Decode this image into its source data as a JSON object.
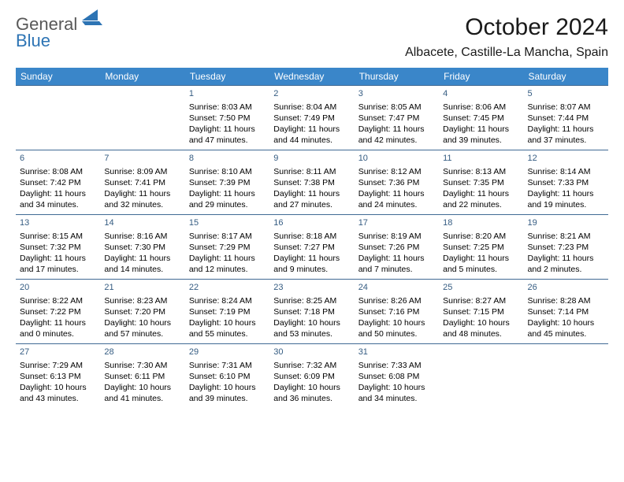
{
  "logo": {
    "part1": "General",
    "part2": "Blue"
  },
  "title": "October 2024",
  "location": "Albacete, Castille-La Mancha, Spain",
  "colors": {
    "header_bg": "#3a86c9",
    "header_text": "#ffffff",
    "row_border": "#406a94",
    "daynum_color": "#355c82",
    "logo_gray": "#585858",
    "logo_blue": "#2d74b4"
  },
  "typography": {
    "title_fontsize": 30,
    "location_fontsize": 16,
    "header_fontsize": 12,
    "cell_fontsize": 10.5
  },
  "weekdays": [
    "Sunday",
    "Monday",
    "Tuesday",
    "Wednesday",
    "Thursday",
    "Friday",
    "Saturday"
  ],
  "weeks": [
    [
      null,
      null,
      {
        "n": "1",
        "sunrise": "Sunrise: 8:03 AM",
        "sunset": "Sunset: 7:50 PM",
        "daylight": "Daylight: 11 hours and 47 minutes."
      },
      {
        "n": "2",
        "sunrise": "Sunrise: 8:04 AM",
        "sunset": "Sunset: 7:49 PM",
        "daylight": "Daylight: 11 hours and 44 minutes."
      },
      {
        "n": "3",
        "sunrise": "Sunrise: 8:05 AM",
        "sunset": "Sunset: 7:47 PM",
        "daylight": "Daylight: 11 hours and 42 minutes."
      },
      {
        "n": "4",
        "sunrise": "Sunrise: 8:06 AM",
        "sunset": "Sunset: 7:45 PM",
        "daylight": "Daylight: 11 hours and 39 minutes."
      },
      {
        "n": "5",
        "sunrise": "Sunrise: 8:07 AM",
        "sunset": "Sunset: 7:44 PM",
        "daylight": "Daylight: 11 hours and 37 minutes."
      }
    ],
    [
      {
        "n": "6",
        "sunrise": "Sunrise: 8:08 AM",
        "sunset": "Sunset: 7:42 PM",
        "daylight": "Daylight: 11 hours and 34 minutes."
      },
      {
        "n": "7",
        "sunrise": "Sunrise: 8:09 AM",
        "sunset": "Sunset: 7:41 PM",
        "daylight": "Daylight: 11 hours and 32 minutes."
      },
      {
        "n": "8",
        "sunrise": "Sunrise: 8:10 AM",
        "sunset": "Sunset: 7:39 PM",
        "daylight": "Daylight: 11 hours and 29 minutes."
      },
      {
        "n": "9",
        "sunrise": "Sunrise: 8:11 AM",
        "sunset": "Sunset: 7:38 PM",
        "daylight": "Daylight: 11 hours and 27 minutes."
      },
      {
        "n": "10",
        "sunrise": "Sunrise: 8:12 AM",
        "sunset": "Sunset: 7:36 PM",
        "daylight": "Daylight: 11 hours and 24 minutes."
      },
      {
        "n": "11",
        "sunrise": "Sunrise: 8:13 AM",
        "sunset": "Sunset: 7:35 PM",
        "daylight": "Daylight: 11 hours and 22 minutes."
      },
      {
        "n": "12",
        "sunrise": "Sunrise: 8:14 AM",
        "sunset": "Sunset: 7:33 PM",
        "daylight": "Daylight: 11 hours and 19 minutes."
      }
    ],
    [
      {
        "n": "13",
        "sunrise": "Sunrise: 8:15 AM",
        "sunset": "Sunset: 7:32 PM",
        "daylight": "Daylight: 11 hours and 17 minutes."
      },
      {
        "n": "14",
        "sunrise": "Sunrise: 8:16 AM",
        "sunset": "Sunset: 7:30 PM",
        "daylight": "Daylight: 11 hours and 14 minutes."
      },
      {
        "n": "15",
        "sunrise": "Sunrise: 8:17 AM",
        "sunset": "Sunset: 7:29 PM",
        "daylight": "Daylight: 11 hours and 12 minutes."
      },
      {
        "n": "16",
        "sunrise": "Sunrise: 8:18 AM",
        "sunset": "Sunset: 7:27 PM",
        "daylight": "Daylight: 11 hours and 9 minutes."
      },
      {
        "n": "17",
        "sunrise": "Sunrise: 8:19 AM",
        "sunset": "Sunset: 7:26 PM",
        "daylight": "Daylight: 11 hours and 7 minutes."
      },
      {
        "n": "18",
        "sunrise": "Sunrise: 8:20 AM",
        "sunset": "Sunset: 7:25 PM",
        "daylight": "Daylight: 11 hours and 5 minutes."
      },
      {
        "n": "19",
        "sunrise": "Sunrise: 8:21 AM",
        "sunset": "Sunset: 7:23 PM",
        "daylight": "Daylight: 11 hours and 2 minutes."
      }
    ],
    [
      {
        "n": "20",
        "sunrise": "Sunrise: 8:22 AM",
        "sunset": "Sunset: 7:22 PM",
        "daylight": "Daylight: 11 hours and 0 minutes."
      },
      {
        "n": "21",
        "sunrise": "Sunrise: 8:23 AM",
        "sunset": "Sunset: 7:20 PM",
        "daylight": "Daylight: 10 hours and 57 minutes."
      },
      {
        "n": "22",
        "sunrise": "Sunrise: 8:24 AM",
        "sunset": "Sunset: 7:19 PM",
        "daylight": "Daylight: 10 hours and 55 minutes."
      },
      {
        "n": "23",
        "sunrise": "Sunrise: 8:25 AM",
        "sunset": "Sunset: 7:18 PM",
        "daylight": "Daylight: 10 hours and 53 minutes."
      },
      {
        "n": "24",
        "sunrise": "Sunrise: 8:26 AM",
        "sunset": "Sunset: 7:16 PM",
        "daylight": "Daylight: 10 hours and 50 minutes."
      },
      {
        "n": "25",
        "sunrise": "Sunrise: 8:27 AM",
        "sunset": "Sunset: 7:15 PM",
        "daylight": "Daylight: 10 hours and 48 minutes."
      },
      {
        "n": "26",
        "sunrise": "Sunrise: 8:28 AM",
        "sunset": "Sunset: 7:14 PM",
        "daylight": "Daylight: 10 hours and 45 minutes."
      }
    ],
    [
      {
        "n": "27",
        "sunrise": "Sunrise: 7:29 AM",
        "sunset": "Sunset: 6:13 PM",
        "daylight": "Daylight: 10 hours and 43 minutes."
      },
      {
        "n": "28",
        "sunrise": "Sunrise: 7:30 AM",
        "sunset": "Sunset: 6:11 PM",
        "daylight": "Daylight: 10 hours and 41 minutes."
      },
      {
        "n": "29",
        "sunrise": "Sunrise: 7:31 AM",
        "sunset": "Sunset: 6:10 PM",
        "daylight": "Daylight: 10 hours and 39 minutes."
      },
      {
        "n": "30",
        "sunrise": "Sunrise: 7:32 AM",
        "sunset": "Sunset: 6:09 PM",
        "daylight": "Daylight: 10 hours and 36 minutes."
      },
      {
        "n": "31",
        "sunrise": "Sunrise: 7:33 AM",
        "sunset": "Sunset: 6:08 PM",
        "daylight": "Daylight: 10 hours and 34 minutes."
      },
      null,
      null
    ]
  ]
}
